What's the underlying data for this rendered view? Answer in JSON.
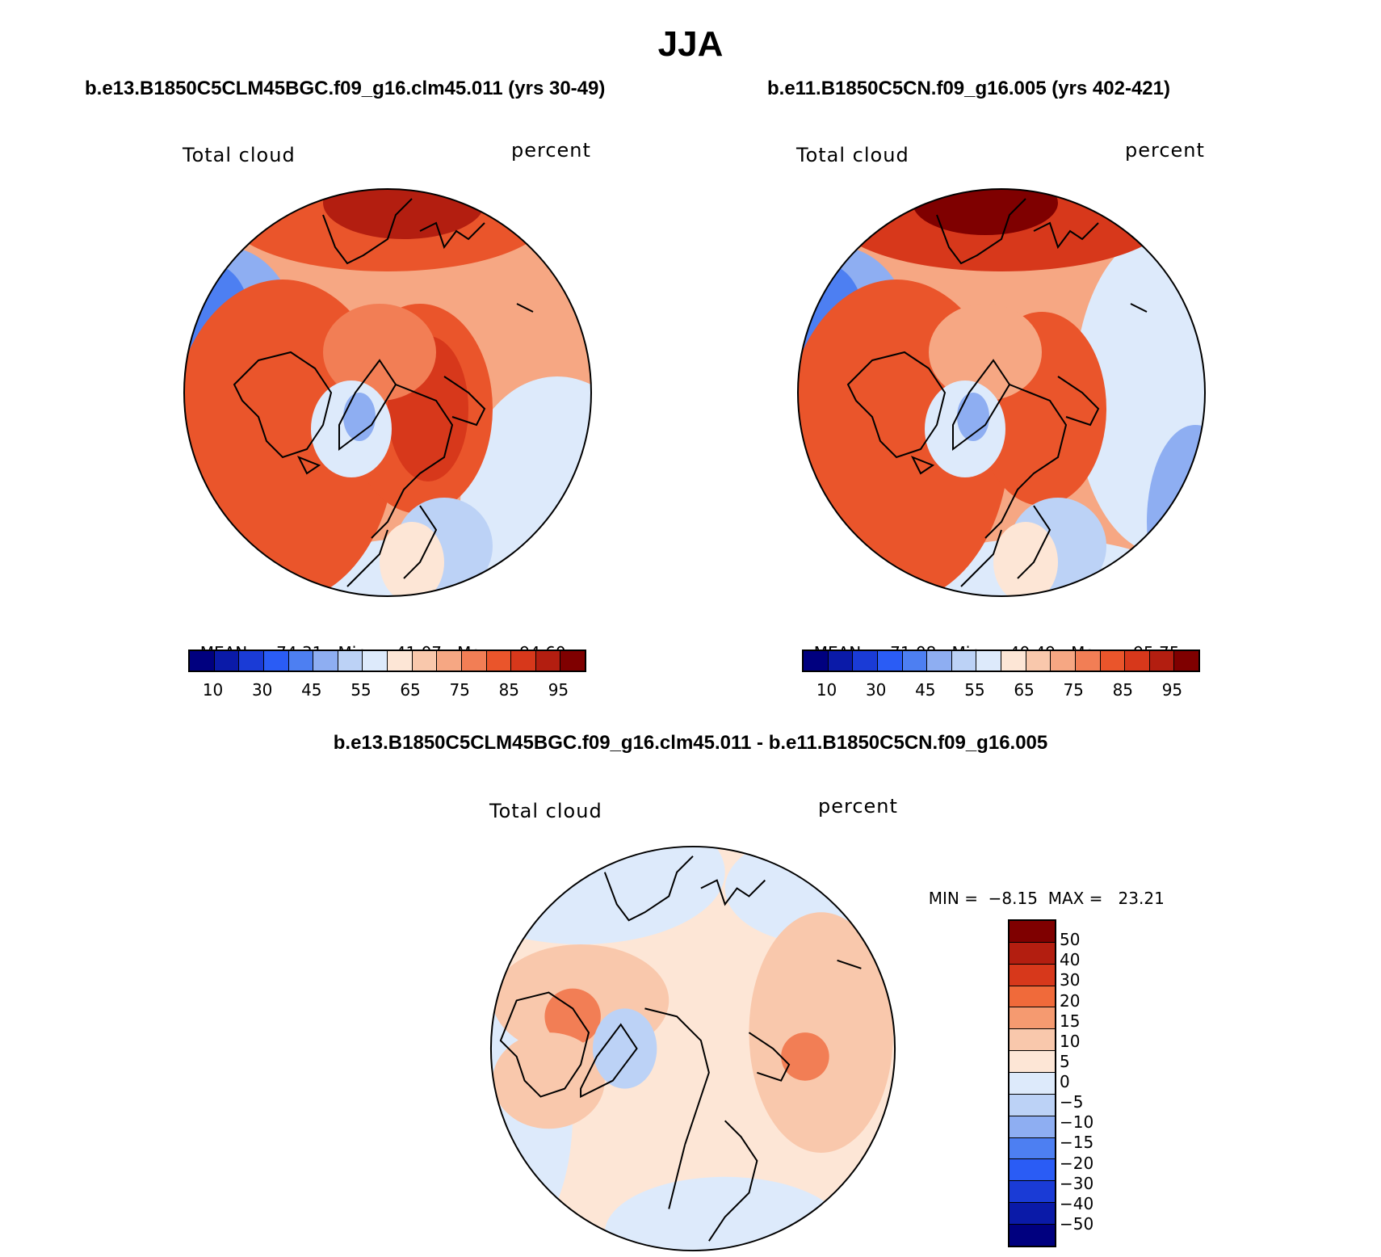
{
  "figure": {
    "season": "JJA",
    "panels": [
      {
        "case": "b.e13.B1850C5CLM45BGC.f09_g16.clm45.011 (yrs 30-49)",
        "variable": "Total cloud",
        "units": "percent",
        "stats": {
          "mean_label": "MEAN=",
          "mean": "74.31",
          "min_label": "Min=",
          "min": "41.07",
          "max_label": "Max=",
          "max": "94.60"
        }
      },
      {
        "case": "b.e11.B1850C5CN.f09_g16.005 (yrs 402-421)",
        "variable": "Total cloud",
        "units": "percent",
        "stats": {
          "mean_label": "MEAN=",
          "mean": "71.08",
          "min_label": "Min=",
          "min": "40.49",
          "max_label": "Max=",
          "max": "95.75"
        }
      },
      {
        "case": "b.e13.B1850C5CLM45BGC.f09_g16.clm45.011 - b.e11.B1850C5CN.f09_g16.005",
        "variable": "Total cloud",
        "units": "percent",
        "stats": {
          "min_label": "MIN =",
          "min": "−8.15",
          "max_label": "MAX =",
          "max": "23.21"
        }
      }
    ]
  },
  "legends": {
    "abs_colors": [
      "#00007f",
      "#0a1aa8",
      "#1a3bd6",
      "#2a5cf5",
      "#4d7ff2",
      "#8eaef2",
      "#bcd2f6",
      "#ddeafb",
      "#fde6d6",
      "#f9c8ac",
      "#f6a783",
      "#f27e55",
      "#ea552b",
      "#d7381b",
      "#b31e10",
      "#7f0000"
    ],
    "abs_tick_labels": [
      "10",
      "30",
      "45",
      "55",
      "65",
      "75",
      "85",
      "95"
    ],
    "diff_colors": [
      "#7f0000",
      "#b31e10",
      "#d7381b",
      "#f06a3a",
      "#f59a70",
      "#f9c8ac",
      "#fde6d6",
      "#ddeafb",
      "#bcd2f6",
      "#8eaef2",
      "#4d7ff2",
      "#2a5cf5",
      "#1a3bd6",
      "#0a1aa8",
      "#00007f"
    ],
    "diff_tick_labels": [
      "50",
      "40",
      "30",
      "20",
      "15",
      "10",
      "5",
      "0",
      "−5",
      "−10",
      "−15",
      "−20",
      "−30",
      "−40",
      "−50"
    ]
  },
  "chart_data": {
    "type": "map",
    "projection": "north polar stereographic",
    "field": "Total cloud",
    "units": "percent",
    "season": "JJA",
    "maps": [
      {
        "name": "b.e13.B1850C5CLM45BGC.f09_g16.clm45.011",
        "mean": 74.31,
        "min": 41.07,
        "max": 94.6,
        "contour_levels": [
          10,
          20,
          30,
          40,
          45,
          50,
          55,
          60,
          65,
          70,
          75,
          80,
          85,
          90,
          95
        ]
      },
      {
        "name": "b.e11.B1850C5CN.f09_g16.005",
        "mean": 71.08,
        "min": 40.49,
        "max": 95.75,
        "contour_levels": [
          10,
          20,
          30,
          40,
          45,
          50,
          55,
          60,
          65,
          70,
          75,
          80,
          85,
          90,
          95
        ]
      },
      {
        "name": "difference",
        "min": -8.15,
        "max": 23.21,
        "contour_levels": [
          -50,
          -40,
          -30,
          -20,
          -15,
          -10,
          -5,
          0,
          5,
          10,
          15,
          20,
          30,
          40,
          50
        ]
      }
    ]
  }
}
